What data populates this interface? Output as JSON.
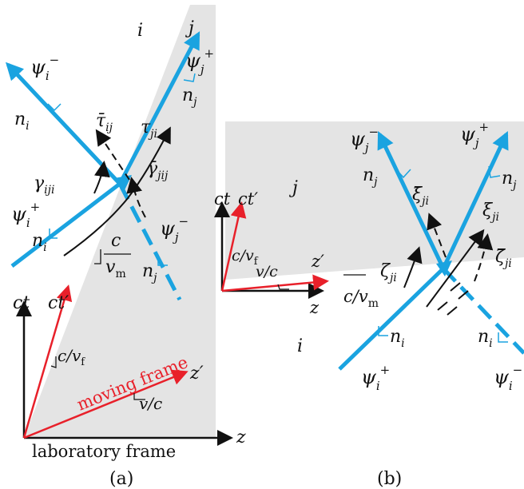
{
  "colors": {
    "beam": "#1aa3e0",
    "frame_moving": "#e8202a",
    "frame_lab": "#111111",
    "shade": "#e4e4e4"
  },
  "panel_a": {
    "caption": "(a)",
    "regions": {
      "left": "i",
      "right": "j"
    },
    "waves": {
      "psi_i_minus": "ψ",
      "psi_j_plus": "ψ",
      "psi_i_plus": "ψ",
      "psi_j_minus": "ψ"
    },
    "normals": {
      "n_i_top": "n",
      "n_j_top": "n",
      "n_i_bottom": "n",
      "n_j_bottom": "n"
    },
    "coefficients": {
      "tau_bar_ij": "τ̄",
      "tau_ji": "τ",
      "gamma_iji": "γ",
      "gamma_bar_jij": "γ̄"
    },
    "velocity": {
      "num": "c",
      "den": "v"
    },
    "axes": {
      "ct": "ct",
      "ct_prime": "ct′",
      "z": "z",
      "z_prime": "z′",
      "c_over_vf": "c/v",
      "vf_over_c": "v/c"
    },
    "frame_labels": {
      "moving": "moving frame",
      "lab": "laboratory frame"
    }
  },
  "panel_b": {
    "caption": "(b)",
    "regions": {
      "top": "j",
      "bottom": "i"
    },
    "waves": {
      "psi_j_minus": "ψ",
      "psi_j_plus": "ψ",
      "psi_i_plus": "ψ",
      "psi_i_minus": "ψ"
    },
    "normals": {
      "n_j_left": "n",
      "n_j_right": "n",
      "n_i_left": "n",
      "n_i_right": "n"
    },
    "coefficients": {
      "xi_bar_ji": "ξ̄",
      "xi_ji": "ξ",
      "zeta_ji": "ζ",
      "zeta_bar_ji": "ζ̄"
    },
    "velocity": {
      "text": "c/v"
    },
    "axes": {
      "ct": "ct",
      "ct_prime": "ct′",
      "z": "z",
      "z_prime": "z′",
      "c_over_vf": "c/v",
      "vf_over_c": "v/c"
    }
  }
}
